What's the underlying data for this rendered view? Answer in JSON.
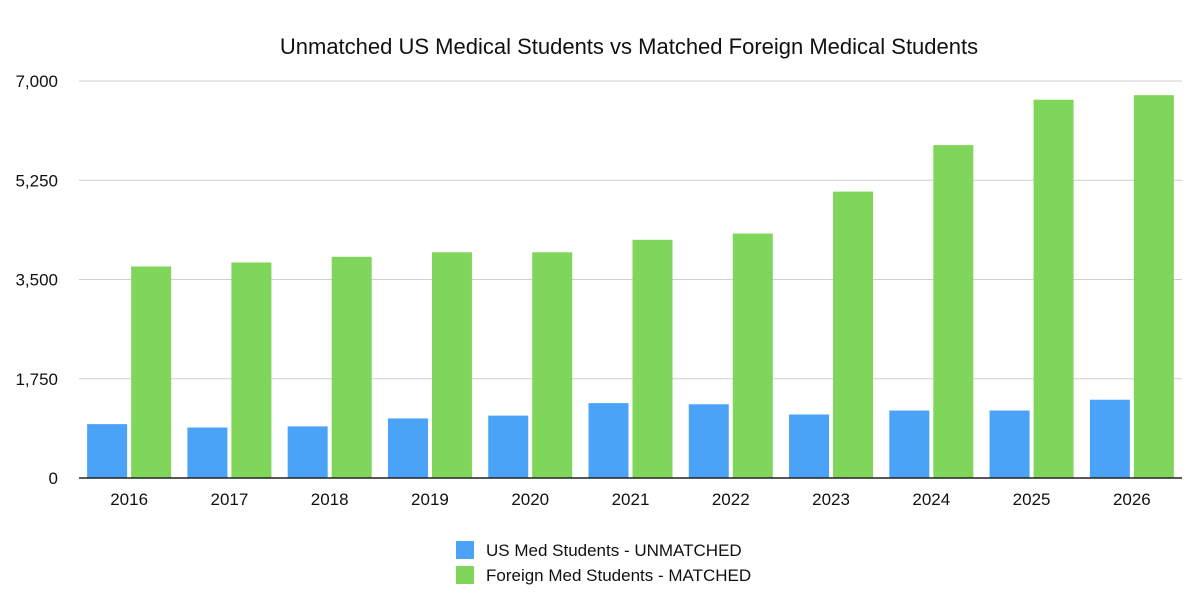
{
  "chart_data": {
    "type": "bar",
    "title": "Unmatched US Medical Students vs Matched Foreign Medical Students",
    "xlabel": "",
    "ylabel": "",
    "categories": [
      "2016",
      "2017",
      "2018",
      "2019",
      "2020",
      "2021",
      "2022",
      "2023",
      "2024",
      "2025",
      "2026"
    ],
    "ylim": [
      0,
      7000
    ],
    "yticks": [
      "0",
      "1,750",
      "3,500",
      "5,250",
      "7,000"
    ],
    "ytick_values": [
      0,
      1750,
      3500,
      5250,
      7000
    ],
    "grid": true,
    "legend_position": "bottom-center",
    "series": [
      {
        "name": "US Med Students - UNMATCHED",
        "color": "#4aa3f7",
        "values": [
          950,
          890,
          910,
          1050,
          1100,
          1320,
          1300,
          1120,
          1190,
          1190,
          1380
        ]
      },
      {
        "name": "Foreign Med Students - MATCHED",
        "color": "#7fd65a",
        "values": [
          3730,
          3800,
          3900,
          3980,
          3980,
          4200,
          4310,
          5050,
          5870,
          6670,
          6750
        ]
      }
    ]
  }
}
